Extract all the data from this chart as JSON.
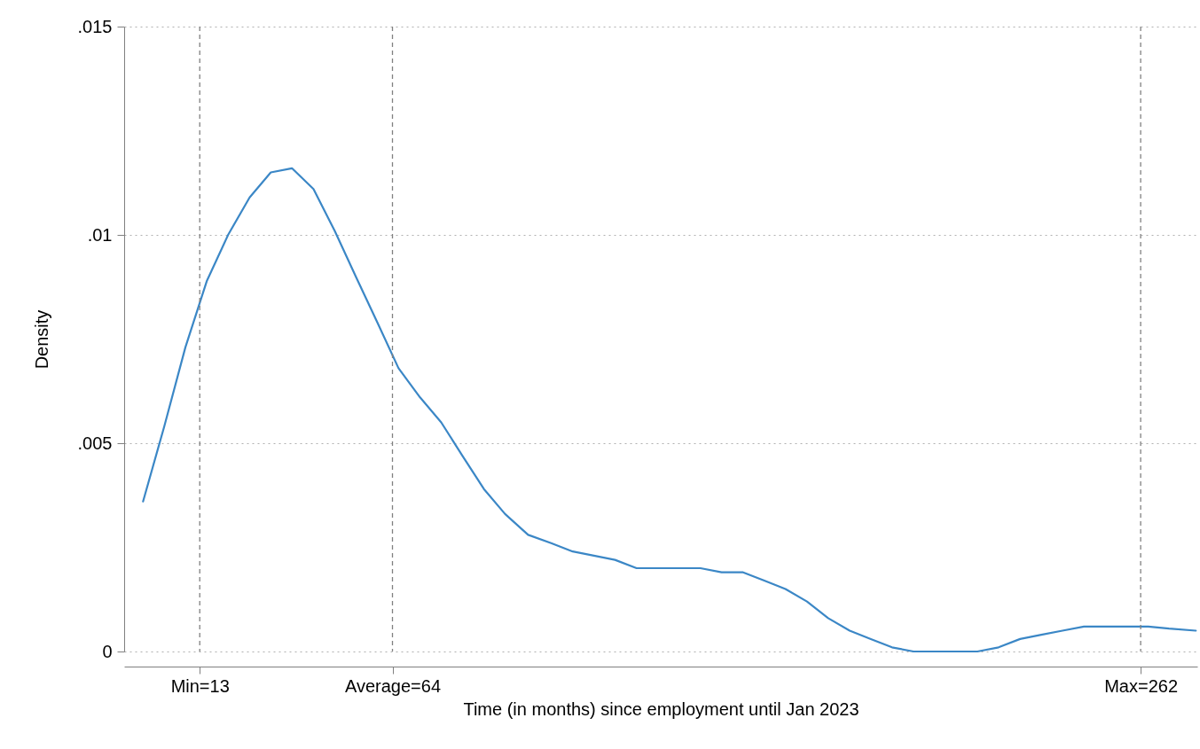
{
  "chart_data": {
    "type": "line",
    "xlabel": "Time (in months) since employment until Jan 2023",
    "ylabel": "Density",
    "x": [
      -2,
      3.6,
      9.2,
      14.9,
      20.5,
      26.2,
      31.8,
      37.4,
      43.1,
      48.7,
      54.3,
      60,
      65.6,
      71.3,
      76.9,
      82.5,
      88.2,
      93.8,
      99.9,
      106,
      111.7,
      117.3,
      122.9,
      128.6,
      134.2,
      139.8,
      145.5,
      151.1,
      156.8,
      162.4,
      168,
      173.7,
      179.3,
      185,
      190.6,
      196.2,
      201.9,
      207.5,
      213.1,
      218.8,
      224.4,
      230.1,
      235.7,
      241.3,
      247,
      252.6,
      258.4,
      264,
      269.5,
      276.6
    ],
    "series": [
      {
        "color": "#3b87c6",
        "values": [
          0.0036,
          0.0054,
          0.0073,
          0.0089,
          0.01,
          0.0109,
          0.0115,
          0.0116,
          0.0111,
          0.0101,
          0.009,
          0.0079,
          0.0068,
          0.0061,
          0.0055,
          0.0047,
          0.0039,
          0.0033,
          0.0028,
          0.0026,
          0.0024,
          0.0023,
          0.0022,
          0.002,
          0.002,
          0.002,
          0.002,
          0.0019,
          0.0019,
          0.0017,
          0.0015,
          0.0012,
          0.0008,
          0.0005,
          0.0003,
          0.0001,
          0,
          0,
          0,
          0,
          0.0001,
          0.0003,
          0.0004,
          0.0005,
          0.0006,
          0.0006,
          0.0006,
          0.0006,
          0.00055,
          0.0005
        ]
      }
    ],
    "xlim": [
      -7,
      277
    ],
    "xticks": [
      {
        "value": 13,
        "label": "Min=13"
      },
      {
        "value": 64,
        "label": "Average=64"
      },
      {
        "value": 262,
        "label": "Max=262"
      }
    ],
    "ylim": [
      0,
      0.015
    ],
    "yticks": [
      0,
      {
        "value": 0.005,
        "label": ".005"
      },
      {
        "value": 0.01,
        "label": ".01"
      },
      {
        "value": 0.015,
        "label": ".015"
      }
    ],
    "grid": "y",
    "line_style": "solid",
    "ref_lines": [
      {
        "axis": "x",
        "value": 13,
        "color": "#808080",
        "line_style": "dashed"
      },
      {
        "axis": "x",
        "value": 64,
        "color": "#808080",
        "line_style": "dashed"
      },
      {
        "axis": "x",
        "value": 262,
        "color": "#808080",
        "line_style": "dashed"
      }
    ]
  }
}
